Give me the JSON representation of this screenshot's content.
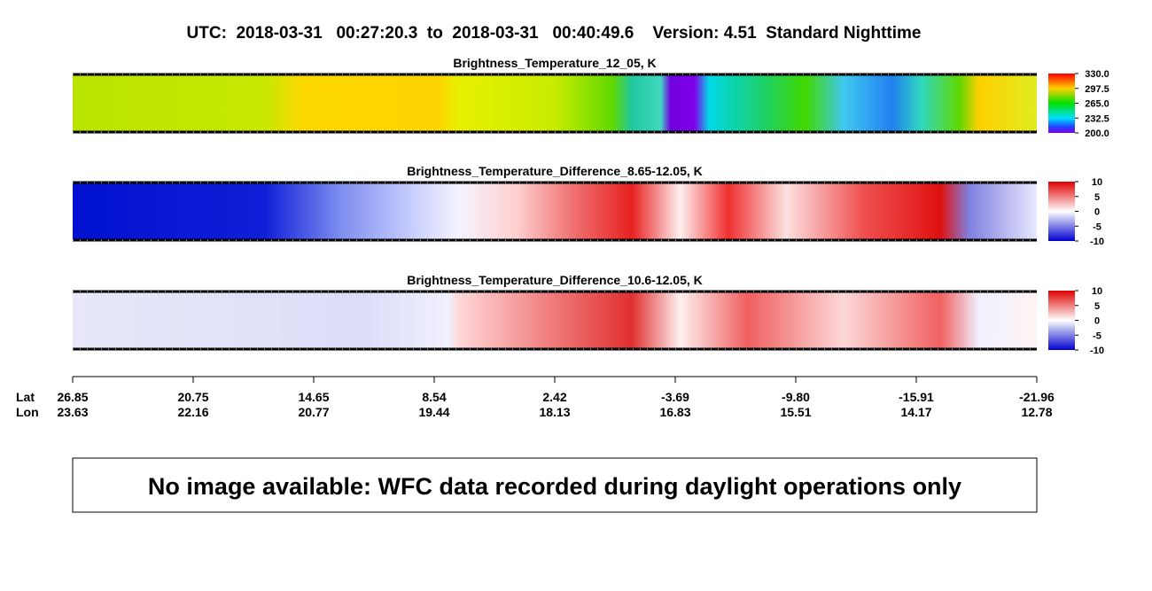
{
  "title": "UTC:  2018-03-31   00:27:20.3  to  2018-03-31   00:40:49.6    Version: 4.51  Standard Nighttime",
  "panels": [
    {
      "title": "Brightness_Temperature_12_05, K",
      "colorbar": [
        "330.0",
        "297.5",
        "265.0",
        "232.5",
        "200.0"
      ]
    },
    {
      "title": "Brightness_Temperature_Difference_8.65-12.05, K",
      "colorbar": [
        "10",
        "5",
        "0",
        "-5",
        "-10"
      ]
    },
    {
      "title": "Brightness_Temperature_Difference_10.6-12.05, K",
      "colorbar": [
        "10",
        "5",
        "0",
        "-5",
        "-10"
      ]
    }
  ],
  "axis": {
    "lat_label": "Lat",
    "lon_label": "Lon",
    "lat": [
      "26.85",
      "20.75",
      "14.65",
      "8.54",
      "2.42",
      "-3.69",
      "-9.80",
      "-15.91",
      "-21.96"
    ],
    "lon": [
      "23.63",
      "22.16",
      "20.77",
      "19.44",
      "18.13",
      "16.83",
      "15.51",
      "14.17",
      "12.78"
    ]
  },
  "message": "No image available: WFC data recorded during daylight operations only"
}
